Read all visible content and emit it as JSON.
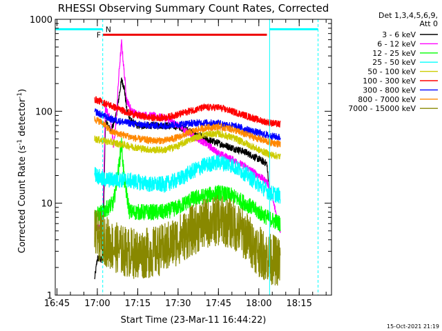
{
  "chart_data": {
    "type": "line",
    "title": "RHESSI Observing Summary Count Rates, Corrected",
    "xlabel": "Start Time (23-Mar-11 16:44:22)",
    "ylabel": "Corrected Count Rate (s⁻¹ detector⁻¹)",
    "ylabel_main": "Corrected Count Rate (s",
    "ylabel_sup1": "-1",
    "ylabel_mid": " detector",
    "ylabel_sup2": "-1",
    "ylabel_end": ")",
    "y_scale": "log",
    "ylim": [
      1,
      1000
    ],
    "xlim": [
      "16:44:22",
      "18:27:00"
    ],
    "x_ticks": [
      "16:45",
      "17:00",
      "17:15",
      "17:30",
      "17:45",
      "18:00",
      "18:15"
    ],
    "y_ticks": [
      "1",
      "10",
      "100",
      "1000"
    ],
    "legend_placement": "right, outside",
    "legend_header": [
      "Det 1,3,4,5,6,9,",
      "Att 0"
    ],
    "timestamp": "15-Oct-2021 21:19",
    "flag_labels": {
      "F": "F",
      "N": "N"
    },
    "flare_flag": {
      "start": "17:02",
      "end": "18:03",
      "level": 680,
      "color": "#ee0000"
    },
    "night_flags": [
      {
        "start": "16:44:22",
        "end": "17:02",
        "level": 780
      },
      {
        "start": "18:04",
        "end": "18:22",
        "level": 780
      }
    ],
    "data_start": "16:59",
    "data_end": "18:09",
    "markers": [
      {
        "time": "17:02",
        "color": "#00ffff",
        "style": "dashed"
      },
      {
        "time": "18:04",
        "color": "#00ffff",
        "style": "solid"
      },
      {
        "time": "18:22",
        "color": "#00ffff",
        "style": "dashed"
      }
    ],
    "series": [
      {
        "name": "3 - 6 keV",
        "color": "#000000",
        "points": [
          [
            "16:59",
            1.5
          ],
          [
            "17:00",
            2.5
          ],
          [
            "17:01",
            2.5
          ],
          [
            "17:02",
            2.3
          ],
          [
            "17:03",
            80
          ],
          [
            "17:05",
            60
          ],
          [
            "17:07",
            90
          ],
          [
            "17:08",
            140
          ],
          [
            "17:09",
            220
          ],
          [
            "17:10",
            180
          ],
          [
            "17:11",
            100
          ],
          [
            "17:13",
            75
          ],
          [
            "17:15",
            70
          ],
          [
            "17:20",
            70
          ],
          [
            "17:25",
            70
          ],
          [
            "17:30",
            68
          ],
          [
            "17:35",
            60
          ],
          [
            "17:40",
            50
          ],
          [
            "17:45",
            45
          ],
          [
            "17:50",
            40
          ],
          [
            "17:55",
            36
          ],
          [
            "18:00",
            30
          ],
          [
            "18:03",
            27
          ],
          [
            "18:04",
            12
          ]
        ]
      },
      {
        "name": "6 - 12 keV",
        "color": "#ff00ff",
        "points": [
          [
            "16:59",
            5
          ],
          [
            "17:00",
            5.5
          ],
          [
            "17:01",
            5.5
          ],
          [
            "17:02",
            6
          ],
          [
            "17:03",
            110
          ],
          [
            "17:05",
            80
          ],
          [
            "17:06",
            40
          ],
          [
            "17:07",
            80
          ],
          [
            "17:08",
            250
          ],
          [
            "17:09",
            560
          ],
          [
            "17:10",
            260
          ],
          [
            "17:11",
            130
          ],
          [
            "17:13",
            100
          ],
          [
            "17:15",
            92
          ],
          [
            "17:20",
            90
          ],
          [
            "17:25",
            85
          ],
          [
            "17:30",
            70
          ],
          [
            "17:35",
            55
          ],
          [
            "17:40",
            45
          ],
          [
            "17:45",
            35
          ],
          [
            "17:50",
            30
          ],
          [
            "17:55",
            25
          ],
          [
            "18:00",
            20
          ],
          [
            "18:03",
            17
          ],
          [
            "18:04",
            15
          ],
          [
            "18:08",
            5
          ]
        ]
      },
      {
        "name": "12 - 25 keV",
        "color": "#00ff00",
        "points": [
          [
            "16:59",
            7
          ],
          [
            "17:00",
            7.5
          ],
          [
            "17:02",
            8
          ],
          [
            "17:04",
            9
          ],
          [
            "17:06",
            10
          ],
          [
            "17:08",
            25
          ],
          [
            "17:09",
            45
          ],
          [
            "17:10",
            18
          ],
          [
            "17:12",
            8
          ],
          [
            "17:15",
            8
          ],
          [
            "17:25",
            8
          ],
          [
            "17:30",
            9
          ],
          [
            "17:35",
            11
          ],
          [
            "17:40",
            12
          ],
          [
            "17:45",
            13
          ],
          [
            "17:50",
            12
          ],
          [
            "17:55",
            10
          ],
          [
            "18:00",
            8
          ],
          [
            "18:03",
            7
          ],
          [
            "18:08",
            6
          ]
        ]
      },
      {
        "name": "25 - 50 keV",
        "color": "#00ffff",
        "points": [
          [
            "16:59",
            21
          ],
          [
            "17:02",
            18
          ],
          [
            "17:05",
            18
          ],
          [
            "17:10",
            18
          ],
          [
            "17:15",
            17
          ],
          [
            "17:20",
            16
          ],
          [
            "17:25",
            16
          ],
          [
            "17:30",
            18
          ],
          [
            "17:35",
            22
          ],
          [
            "17:40",
            26
          ],
          [
            "17:45",
            28
          ],
          [
            "17:50",
            26
          ],
          [
            "17:55",
            21
          ],
          [
            "18:00",
            16
          ],
          [
            "18:04",
            13
          ],
          [
            "18:08",
            12
          ]
        ]
      },
      {
        "name": "50 - 100 keV",
        "color": "#cccc00",
        "points": [
          [
            "16:59",
            50
          ],
          [
            "17:02",
            48
          ],
          [
            "17:05",
            46
          ],
          [
            "17:10",
            43
          ],
          [
            "17:15",
            40
          ],
          [
            "17:20",
            38
          ],
          [
            "17:25",
            38
          ],
          [
            "17:30",
            42
          ],
          [
            "17:35",
            50
          ],
          [
            "17:40",
            56
          ],
          [
            "17:45",
            57
          ],
          [
            "17:50",
            52
          ],
          [
            "17:55",
            45
          ],
          [
            "18:00",
            38
          ],
          [
            "18:04",
            34
          ],
          [
            "18:08",
            32
          ]
        ]
      },
      {
        "name": "100 - 300 keV",
        "color": "#ff0000",
        "points": [
          [
            "16:59",
            135
          ],
          [
            "17:02",
            125
          ],
          [
            "17:05",
            115
          ],
          [
            "17:10",
            100
          ],
          [
            "17:15",
            90
          ],
          [
            "17:20",
            85
          ],
          [
            "17:25",
            85
          ],
          [
            "17:30",
            92
          ],
          [
            "17:35",
            102
          ],
          [
            "17:40",
            110
          ],
          [
            "17:45",
            110
          ],
          [
            "17:50",
            100
          ],
          [
            "17:55",
            90
          ],
          [
            "18:00",
            80
          ],
          [
            "18:04",
            75
          ],
          [
            "18:08",
            72
          ]
        ]
      },
      {
        "name": "300 - 800 keV",
        "color": "#0000ff",
        "points": [
          [
            "16:59",
            100
          ],
          [
            "17:02",
            90
          ],
          [
            "17:05",
            82
          ],
          [
            "17:10",
            76
          ],
          [
            "17:15",
            72
          ],
          [
            "17:20",
            70
          ],
          [
            "17:25",
            70
          ],
          [
            "17:30",
            72
          ],
          [
            "17:35",
            74
          ],
          [
            "17:40",
            75
          ],
          [
            "17:45",
            74
          ],
          [
            "17:50",
            70
          ],
          [
            "17:55",
            64
          ],
          [
            "18:00",
            58
          ],
          [
            "18:04",
            54
          ],
          [
            "18:08",
            52
          ]
        ]
      },
      {
        "name": "800 - 7000 keV",
        "color": "#ff8800",
        "points": [
          [
            "16:59",
            82
          ],
          [
            "17:02",
            75
          ],
          [
            "17:05",
            60
          ],
          [
            "17:10",
            55
          ],
          [
            "17:15",
            50
          ],
          [
            "17:20",
            48
          ],
          [
            "17:25",
            48
          ],
          [
            "17:30",
            52
          ],
          [
            "17:35",
            60
          ],
          [
            "17:40",
            66
          ],
          [
            "17:45",
            68
          ],
          [
            "17:50",
            64
          ],
          [
            "17:55",
            56
          ],
          [
            "18:00",
            50
          ],
          [
            "18:04",
            46
          ],
          [
            "18:08",
            44
          ]
        ]
      },
      {
        "name": "7000 - 15000 keV",
        "color": "#888800",
        "points": [
          [
            "16:59",
            4.5
          ],
          [
            "17:02",
            4.2
          ],
          [
            "17:05",
            3.5
          ],
          [
            "17:10",
            3.0
          ],
          [
            "17:15",
            2.8
          ],
          [
            "17:20",
            2.9
          ],
          [
            "17:25",
            3.2
          ],
          [
            "17:30",
            4.0
          ],
          [
            "17:35",
            5.0
          ],
          [
            "17:40",
            6.0
          ],
          [
            "17:45",
            6.5
          ],
          [
            "17:50",
            6.0
          ],
          [
            "17:55",
            4.5
          ],
          [
            "18:00",
            3.0
          ],
          [
            "18:04",
            2.5
          ],
          [
            "18:08",
            2.3
          ]
        ]
      }
    ]
  }
}
